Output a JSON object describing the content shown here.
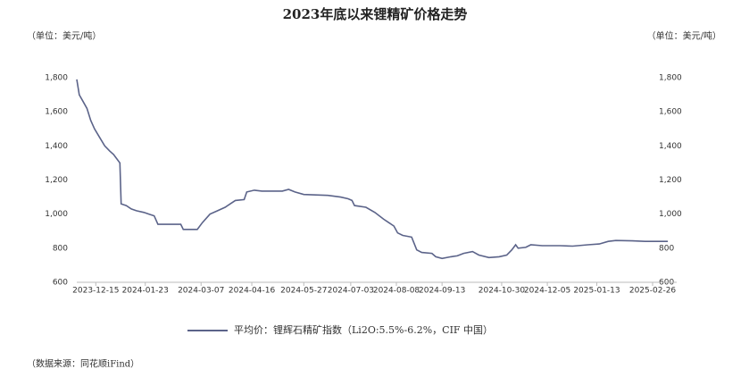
{
  "chart_data": {
    "type": "line",
    "title": "2023年底以来锂精矿价格走势",
    "ylabel": "（单位：美元/吨）",
    "y2label": "（单位：美元/吨）",
    "note": "（数据来源：同花顺iFind）",
    "xlim": [
      "2023-11-30",
      "2025-03-17"
    ],
    "xticks": [
      "2023-12-15",
      "2024-01-23",
      "2024-03-07",
      "2024-04-16",
      "2024-05-27",
      "2024-07-03",
      "2024-08-08",
      "2024-09-13",
      "2024-10-30",
      "2024-12-05",
      "2025-01-13",
      "2025-02-26"
    ],
    "ylim": [
      600,
      1800
    ],
    "yticks": [
      600,
      800,
      {
        "value": 1000,
        "label": "1,000"
      },
      {
        "value": 1200,
        "label": "1,200"
      },
      {
        "value": 1400,
        "label": "1,400"
      },
      {
        "value": 1600,
        "label": "1,600"
      },
      {
        "value": 1800,
        "label": "1,800"
      }
    ],
    "y2lim": [
      600,
      1800
    ],
    "y2ticks": [
      600,
      800,
      {
        "value": 1000,
        "label": "1,000"
      },
      {
        "value": 1200,
        "label": "1,200"
      },
      {
        "value": 1400,
        "label": "1,400"
      },
      {
        "value": 1600,
        "label": "1,600"
      },
      {
        "value": 1800,
        "label": "1,800"
      }
    ],
    "x": [
      "2023-11-30",
      "2023-12-02",
      "2023-12-05",
      "2023-12-08",
      "2023-12-11",
      "2023-12-14",
      "2023-12-18",
      "2023-12-22",
      "2023-12-26",
      "2023-12-29",
      "2024-01-03",
      "2024-01-04",
      "2024-01-08",
      "2024-01-12",
      "2024-01-16",
      "2024-01-22",
      "2024-01-26",
      "2024-01-30",
      "2024-02-02",
      "2024-02-20",
      "2024-02-22",
      "2024-03-04",
      "2024-03-08",
      "2024-03-14",
      "2024-03-20",
      "2024-03-26",
      "2024-03-30",
      "2024-04-03",
      "2024-04-10",
      "2024-04-12",
      "2024-04-18",
      "2024-04-24",
      "2024-05-10",
      "2024-05-15",
      "2024-05-20",
      "2024-05-27",
      "2024-06-15",
      "2024-06-25",
      "2024-07-01",
      "2024-07-04",
      "2024-07-06",
      "2024-07-15",
      "2024-07-22",
      "2024-07-29",
      "2024-08-02",
      "2024-08-06",
      "2024-08-09",
      "2024-08-13",
      "2024-08-20",
      "2024-08-24",
      "2024-08-28",
      "2024-09-05",
      "2024-09-08",
      "2024-09-13",
      "2024-09-20",
      "2024-09-25",
      "2024-09-30",
      "2024-10-07",
      "2024-10-12",
      "2024-10-20",
      "2024-10-28",
      "2024-11-03",
      "2024-11-07",
      "2024-11-10",
      "2024-11-12",
      "2024-11-18",
      "2024-11-22",
      "2024-12-01",
      "2024-12-15",
      "2024-12-25",
      "2025-01-06",
      "2025-01-15",
      "2025-01-22",
      "2025-01-28",
      "2025-02-10",
      "2025-02-20",
      "2025-03-10"
    ],
    "series": [
      {
        "name": "平均价：锂辉石精矿指数（Li2O:5.5%-6.2%，CIF 中国）",
        "color": "#5b6389",
        "values": [
          1790,
          1700,
          1660,
          1620,
          1550,
          1500,
          1450,
          1400,
          1370,
          1350,
          1300,
          1060,
          1050,
          1030,
          1020,
          1010,
          1000,
          990,
          940,
          940,
          910,
          910,
          950,
          1000,
          1020,
          1040,
          1060,
          1080,
          1085,
          1130,
          1140,
          1135,
          1135,
          1145,
          1130,
          1115,
          1110,
          1100,
          1090,
          1080,
          1050,
          1040,
          1010,
          970,
          950,
          930,
          890,
          875,
          865,
          790,
          775,
          770,
          750,
          740,
          750,
          755,
          770,
          780,
          760,
          745,
          750,
          760,
          790,
          820,
          800,
          805,
          820,
          815,
          815,
          812,
          820,
          825,
          840,
          845,
          843,
          840,
          840
        ]
      }
    ]
  }
}
